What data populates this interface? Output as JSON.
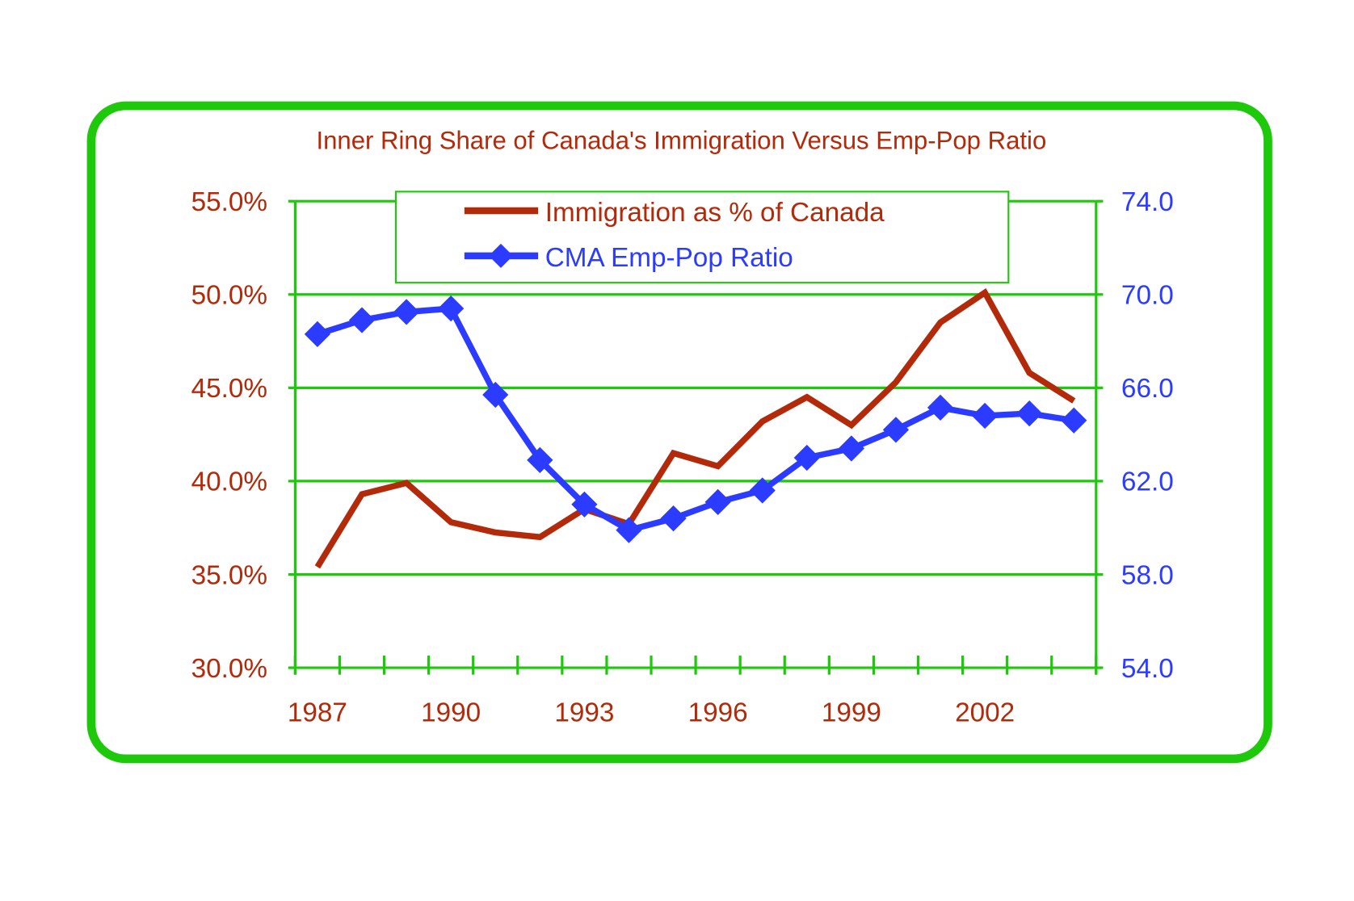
{
  "chart_data": {
    "type": "line",
    "title": "Inner Ring Share of Canada's Immigration Versus Emp-Pop Ratio",
    "x": [
      1987,
      1988,
      1989,
      1990,
      1991,
      1992,
      1993,
      1994,
      1995,
      1996,
      1997,
      1998,
      1999,
      2000,
      2001,
      2002,
      2003,
      2004
    ],
    "x_tick_labels": [
      "1987",
      "1990",
      "1993",
      "1996",
      "1999",
      "2002"
    ],
    "y_left": {
      "range": [
        30,
        55
      ],
      "ticks": [
        "30.0%",
        "35.0%",
        "40.0%",
        "45.0%",
        "50.0%",
        "55.0%"
      ],
      "color": "#b22a0a"
    },
    "y_right": {
      "range": [
        54,
        74
      ],
      "ticks": [
        "54.0",
        "58.0",
        "62.0",
        "66.0",
        "70.0",
        "74.0"
      ],
      "color": "#2b3bff"
    },
    "grid": true,
    "legend_position": "top-center",
    "series": [
      {
        "name": "Immigration as % of Canada",
        "axis": "left",
        "color": "#b22a0a",
        "marker": "none",
        "values": [
          35.4,
          39.3,
          39.9,
          37.8,
          37.25,
          37.0,
          38.5,
          37.7,
          41.5,
          40.8,
          43.2,
          44.5,
          43.0,
          45.3,
          48.5,
          50.1,
          45.8,
          44.3
        ]
      },
      {
        "name": "CMA Emp-Pop Ratio",
        "axis": "right",
        "color": "#2b3bff",
        "marker": "diamond",
        "values": [
          68.3,
          68.9,
          69.25,
          69.4,
          65.7,
          62.9,
          61.0,
          59.9,
          60.4,
          61.1,
          61.6,
          63.0,
          63.4,
          64.2,
          65.15,
          64.8,
          64.9,
          64.6
        ]
      }
    ]
  },
  "colors": {
    "frame": "#1ec80a",
    "grid": "#1ec80a"
  }
}
